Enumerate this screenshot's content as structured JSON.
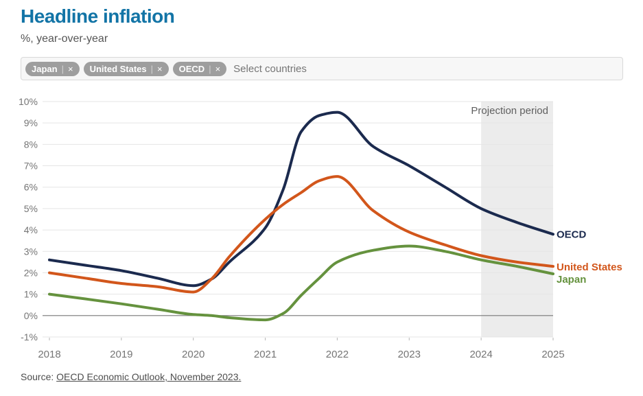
{
  "header": {
    "title": "Headline inflation",
    "subtitle": "%, year-over-year"
  },
  "country_select": {
    "placeholder": "Select countries",
    "divider": "|",
    "remove_icon": "×",
    "selected": [
      {
        "label": "Japan"
      },
      {
        "label": "United States"
      },
      {
        "label": "OECD"
      }
    ]
  },
  "chart_data": {
    "type": "line",
    "title": "Headline inflation",
    "ylabel": "%, year-over-year",
    "xlabel": "",
    "xlim": [
      2018,
      2025
    ],
    "ylim": [
      -1,
      10
    ],
    "grid": true,
    "zero_line": 0,
    "x_tick_values": [
      2018,
      2019,
      2020,
      2021,
      2022,
      2023,
      2024,
      2025
    ],
    "x_tick_labels": [
      "2018",
      "2019",
      "2020",
      "2021",
      "2022",
      "2023",
      "2024",
      "2025"
    ],
    "y_tick_values": [
      10,
      9,
      8,
      7,
      6,
      5,
      4,
      3,
      2,
      1,
      0,
      -1
    ],
    "y_tick_labels": [
      "10%",
      "9%",
      "8%",
      "7%",
      "6%",
      "5%",
      "4%",
      "3%",
      "2%",
      "1%",
      "0%",
      "-1%"
    ],
    "projection": {
      "label": "Projection period",
      "from": 2024,
      "to": 2025
    },
    "legend_position": "line-end-labels",
    "x": [
      2018,
      2018.5,
      2019,
      2019.5,
      2020,
      2020.25,
      2020.5,
      2021,
      2021.25,
      2021.5,
      2021.75,
      2022,
      2022.5,
      2023,
      2023.5,
      2024,
      2024.5,
      2025
    ],
    "series": [
      {
        "name": "OECD",
        "color": "#1b2a4e",
        "values": [
          2.6,
          2.35,
          2.1,
          1.75,
          1.4,
          1.7,
          2.5,
          4.1,
          5.9,
          8.6,
          9.35,
          9.5,
          7.9,
          7.0,
          6.0,
          5.0,
          4.35,
          3.8
        ]
      },
      {
        "name": "United States",
        "color": "#d2561b",
        "values": [
          2.0,
          1.75,
          1.5,
          1.35,
          1.1,
          1.7,
          2.75,
          4.5,
          5.2,
          5.75,
          6.3,
          6.5,
          4.9,
          3.9,
          3.3,
          2.8,
          2.5,
          2.3
        ]
      },
      {
        "name": "Japan",
        "color": "#65923e",
        "values": [
          1.0,
          0.78,
          0.55,
          0.3,
          0.05,
          0.0,
          -0.1,
          -0.2,
          0.1,
          0.95,
          1.75,
          2.5,
          3.05,
          3.25,
          3.0,
          2.6,
          2.3,
          1.95
        ]
      }
    ]
  },
  "source": {
    "prefix": "Source: ",
    "link": "OECD Economic Outlook, November 2023."
  }
}
